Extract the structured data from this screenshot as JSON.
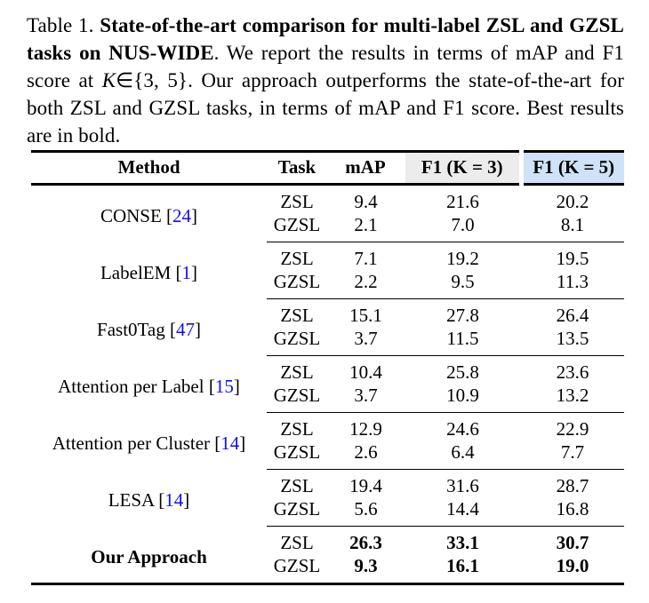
{
  "caption": {
    "label": "Table 1. ",
    "bold_lead": "State-of-the-art comparison for multi-label ZSL and GZSL tasks on NUS-WIDE",
    "text_a": ". We report the results in terms of mAP and F1 score at ",
    "math_var": "K",
    "math_rest": "∈{3, 5}",
    "text_b": ". Our approach outperforms the state-of-the-art for both ZSL and GZSL tasks, in terms of mAP and F1 score. Best results are in bold."
  },
  "table": {
    "headers": [
      "Method",
      "Task",
      "mAP",
      "F1 (K = 3)",
      "F1 (K = 5)"
    ],
    "bracket_open": "[",
    "bracket_close": "]",
    "colors": {
      "f1k3_header_bg": "#ececec",
      "f1k5_header_bg": "#cfe2f6",
      "citation_blue": "#0f0ff0",
      "rule_black": "#000000"
    },
    "groups": [
      {
        "method": "CONSE",
        "cite": "24",
        "rows": [
          {
            "task": "ZSL",
            "map": "9.4",
            "f1k3": "21.6",
            "f1k5": "20.2"
          },
          {
            "task": "GZSL",
            "map": "2.1",
            "f1k3": "7.0",
            "f1k5": "8.1"
          }
        ]
      },
      {
        "method": "LabelEM",
        "cite": "1",
        "rows": [
          {
            "task": "ZSL",
            "map": "7.1",
            "f1k3": "19.2",
            "f1k5": "19.5"
          },
          {
            "task": "GZSL",
            "map": "2.2",
            "f1k3": "9.5",
            "f1k5": "11.3"
          }
        ]
      },
      {
        "method": "Fast0Tag",
        "cite": "47",
        "rows": [
          {
            "task": "ZSL",
            "map": "15.1",
            "f1k3": "27.8",
            "f1k5": "26.4"
          },
          {
            "task": "GZSL",
            "map": "3.7",
            "f1k3": "11.5",
            "f1k5": "13.5"
          }
        ]
      },
      {
        "method": "Attention per Label",
        "cite": "15",
        "rows": [
          {
            "task": "ZSL",
            "map": "10.4",
            "f1k3": "25.8",
            "f1k5": "23.6"
          },
          {
            "task": "GZSL",
            "map": "3.7",
            "f1k3": "10.9",
            "f1k5": "13.2"
          }
        ]
      },
      {
        "method": "Attention per Cluster",
        "cite": "14",
        "rows": [
          {
            "task": "ZSL",
            "map": "12.9",
            "f1k3": "24.6",
            "f1k5": "22.9"
          },
          {
            "task": "GZSL",
            "map": "2.6",
            "f1k3": "6.4",
            "f1k5": "7.7"
          }
        ]
      },
      {
        "method": "LESA",
        "cite": "14",
        "rows": [
          {
            "task": "ZSL",
            "map": "19.4",
            "f1k3": "31.6",
            "f1k5": "28.7"
          },
          {
            "task": "GZSL",
            "map": "5.6",
            "f1k3": "14.4",
            "f1k5": "16.8"
          }
        ]
      },
      {
        "method": "Our Approach",
        "cite": null,
        "rows": [
          {
            "task": "ZSL",
            "map": "26.3",
            "f1k3": "33.1",
            "f1k5": "30.7"
          },
          {
            "task": "GZSL",
            "map": "9.3",
            "f1k3": "16.1",
            "f1k5": "19.0"
          }
        ]
      }
    ]
  }
}
